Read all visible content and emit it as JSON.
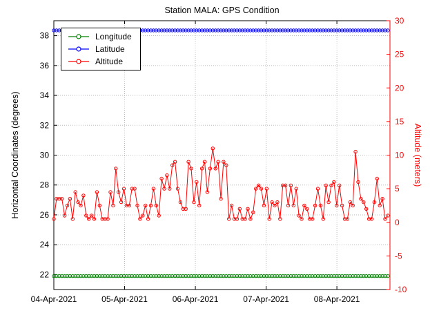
{
  "chart_data": {
    "type": "line",
    "title": "Station MALA: GPS Condition",
    "grid": true,
    "legend_position": "top-left",
    "left_axis": {
      "label": "Horizontal Coordinates (degrees)",
      "min": 21,
      "max": 39,
      "ticks": [
        22,
        24,
        26,
        28,
        30,
        32,
        34,
        36,
        38
      ],
      "color": "#000000"
    },
    "right_axis": {
      "label": "Altitude (meters)",
      "min": -10,
      "max": 30,
      "ticks": [
        -10,
        -5,
        0,
        5,
        10,
        15,
        20,
        25,
        30
      ],
      "color": "#ff0000"
    },
    "x": {
      "start_days": 0,
      "end_days": 4.75,
      "data_end_days": 4.72,
      "tick_positions_days": [
        0,
        1,
        2,
        3,
        4
      ],
      "tick_labels": [
        "04-Apr-2021",
        "05-Apr-2021",
        "06-Apr-2021",
        "07-Apr-2021",
        "08-Apr-2021"
      ]
    },
    "series": [
      {
        "name": "Longitude",
        "axis": "left",
        "color": "#008000",
        "constant_value": 21.9
      },
      {
        "name": "Latitude",
        "axis": "left",
        "color": "#0000ff",
        "constant_value": 38.35
      },
      {
        "name": "Altitude",
        "axis": "right",
        "color": "#ff0000",
        "values": [
          0.5,
          3.5,
          3.5,
          3.5,
          1,
          2.5,
          3.5,
          0.5,
          4.5,
          3,
          2.5,
          4,
          1,
          0.5,
          1,
          0.5,
          4.5,
          2.5,
          0.5,
          0.5,
          0.5,
          4.5,
          2.5,
          8,
          4.5,
          3,
          5,
          2.5,
          2.5,
          5,
          5,
          2.5,
          0.5,
          1,
          2.5,
          0.5,
          2.5,
          5,
          2.5,
          1,
          6.5,
          5,
          7,
          5,
          8.5,
          9,
          5,
          3,
          2,
          2,
          9,
          8,
          3,
          6,
          2.5,
          8,
          9,
          4.5,
          8,
          11,
          8,
          9,
          3.5,
          9,
          8.5,
          0.5,
          2.5,
          0.5,
          0.5,
          2,
          0.5,
          0.5,
          2,
          0.5,
          1.5,
          5,
          5.5,
          5,
          2.5,
          5,
          0.5,
          3,
          2.5,
          3,
          0.5,
          5.5,
          5.5,
          2.5,
          5.5,
          2.5,
          5,
          1,
          0.5,
          2.5,
          2,
          0.5,
          0.5,
          2.5,
          5,
          2.5,
          0.5,
          5.5,
          3,
          5.5,
          6,
          2.5,
          5.5,
          2.5,
          0.5,
          0.5,
          3,
          2.5,
          10.5,
          6,
          3.5,
          3,
          2,
          0.5,
          0.5,
          3,
          6.5,
          2.5,
          3.5,
          0.5,
          1
        ]
      }
    ]
  }
}
